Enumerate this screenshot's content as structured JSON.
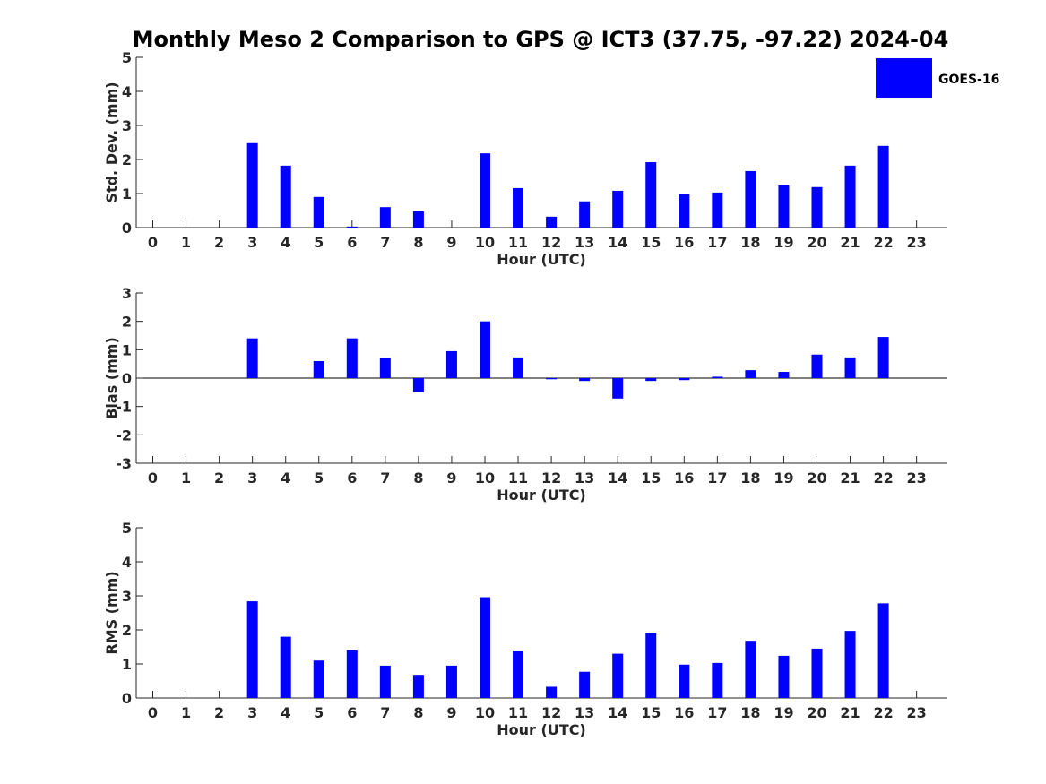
{
  "title": "Monthly Meso 2 Comparison to GPS @ ICT3 (37.75, -97.22) 2024-04",
  "legend": {
    "label": "GOES-16",
    "color": "#0000ff"
  },
  "chart_data": [
    {
      "type": "bar",
      "xlabel": "Hour (UTC)",
      "ylabel": "Std. Dev. (mm)",
      "ylim": [
        0,
        5
      ],
      "yticks": [
        "0",
        "1",
        "2",
        "3",
        "4",
        "5"
      ],
      "categories": [
        "0",
        "1",
        "2",
        "3",
        "4",
        "5",
        "6",
        "7",
        "8",
        "9",
        "10",
        "11",
        "12",
        "13",
        "14",
        "15",
        "16",
        "17",
        "18",
        "19",
        "20",
        "21",
        "22",
        "23"
      ],
      "series": [
        {
          "name": "GOES-16",
          "values": [
            null,
            null,
            null,
            2.48,
            1.82,
            0.9,
            0.03,
            0.6,
            0.48,
            null,
            2.18,
            1.16,
            0.32,
            0.77,
            1.08,
            1.92,
            0.98,
            1.03,
            1.66,
            1.24,
            1.19,
            1.82,
            2.4,
            null
          ]
        }
      ],
      "grid": false,
      "legend": "top-right"
    },
    {
      "type": "bar",
      "xlabel": "Hour (UTC)",
      "ylabel": "Bias (mm)",
      "ylim": [
        -3,
        3
      ],
      "yticks": [
        "-3",
        "-2",
        "-1",
        "0",
        "1",
        "2",
        "3"
      ],
      "categories": [
        "0",
        "1",
        "2",
        "3",
        "4",
        "5",
        "6",
        "7",
        "8",
        "9",
        "10",
        "11",
        "12",
        "13",
        "14",
        "15",
        "16",
        "17",
        "18",
        "19",
        "20",
        "21",
        "22",
        "23"
      ],
      "series": [
        {
          "name": "GOES-16",
          "values": [
            null,
            null,
            null,
            1.4,
            null,
            0.6,
            1.4,
            0.7,
            -0.5,
            0.95,
            2.0,
            0.73,
            -0.04,
            -0.1,
            -0.72,
            -0.1,
            -0.07,
            0.05,
            0.28,
            0.22,
            0.83,
            0.73,
            1.45,
            null
          ]
        }
      ],
      "grid": false
    },
    {
      "type": "bar",
      "xlabel": "Hour (UTC)",
      "ylabel": "RMS (mm)",
      "ylim": [
        0,
        5
      ],
      "yticks": [
        "0",
        "1",
        "2",
        "3",
        "4",
        "5"
      ],
      "categories": [
        "0",
        "1",
        "2",
        "3",
        "4",
        "5",
        "6",
        "7",
        "8",
        "9",
        "10",
        "11",
        "12",
        "13",
        "14",
        "15",
        "16",
        "17",
        "18",
        "19",
        "20",
        "21",
        "22",
        "23"
      ],
      "series": [
        {
          "name": "GOES-16",
          "values": [
            null,
            null,
            null,
            2.84,
            1.8,
            1.1,
            1.4,
            0.95,
            0.68,
            0.95,
            2.96,
            1.37,
            0.33,
            0.77,
            1.3,
            1.92,
            0.98,
            1.03,
            1.68,
            1.24,
            1.45,
            1.97,
            2.78,
            null
          ]
        }
      ],
      "grid": false
    }
  ]
}
